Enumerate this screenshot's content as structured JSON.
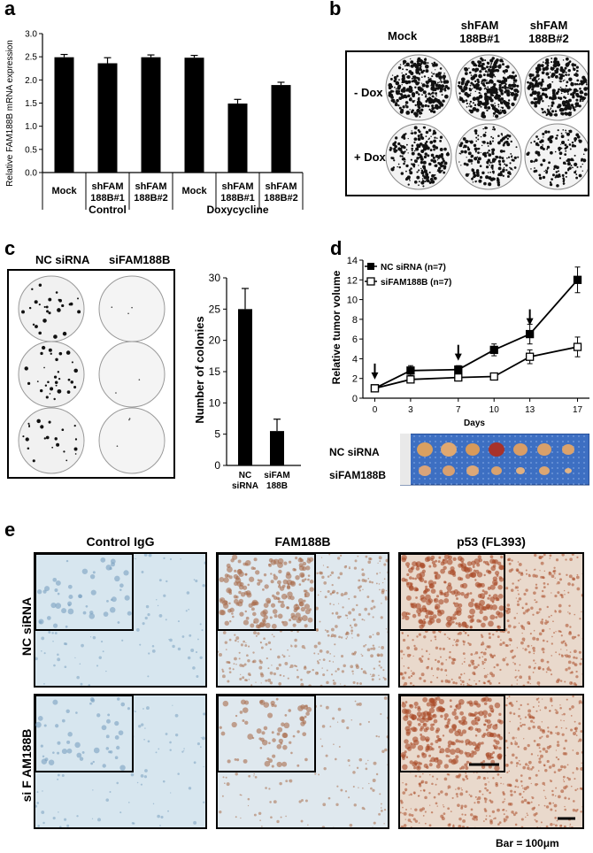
{
  "panels": {
    "a": {
      "label": "a",
      "ylabel": "Relative FAM188B mRNA expression",
      "yticks": [
        "0.0",
        "0.5",
        "1.0",
        "1.5",
        "2.0",
        "2.5",
        "3.0"
      ],
      "bars": [
        {
          "label1": "Mock",
          "label2": "",
          "value": 2.49,
          "err": 0.06
        },
        {
          "label1": "shFAM",
          "label2": "188B#1",
          "value": 2.36,
          "err": 0.12
        },
        {
          "label1": "shFAM",
          "label2": "188B#2",
          "value": 2.49,
          "err": 0.05
        },
        {
          "label1": "Mock",
          "label2": "",
          "value": 2.48,
          "err": 0.05
        },
        {
          "label1": "shFAM",
          "label2": "188B#1",
          "value": 1.49,
          "err": 0.09
        },
        {
          "label1": "shFAM",
          "label2": "188B#2",
          "value": 1.89,
          "err": 0.06
        }
      ],
      "groups": [
        "Control",
        "Doxycycline"
      ]
    },
    "b": {
      "label": "b",
      "cols": [
        {
          "line1": "Mock",
          "line2": ""
        },
        {
          "line1": "shFAM",
          "line2": "188B#1"
        },
        {
          "line1": "shFAM",
          "line2": "188B#2"
        }
      ],
      "rows": [
        "- Dox",
        "+ Dox"
      ]
    },
    "c": {
      "label": "c",
      "cols": [
        "NC siRNA",
        "siFAM188B"
      ],
      "ylabel": "Number of colonies",
      "yticks": [
        "0",
        "5",
        "10",
        "15",
        "20",
        "25",
        "30"
      ],
      "bars": [
        {
          "label1": "NC",
          "label2": "siRNA",
          "value": 25,
          "err": 3.3
        },
        {
          "label1": "siFAM",
          "label2": "188B",
          "value": 5.5,
          "err": 1.9
        }
      ]
    },
    "d": {
      "label": "d",
      "ylabel": "Relative tumor volume",
      "xlabel": "Days",
      "yticks": [
        "0",
        "2",
        "4",
        "6",
        "8",
        "10",
        "12",
        "14"
      ],
      "xticks": [
        "0",
        "3",
        "7",
        "10",
        "13",
        "17"
      ],
      "legend": [
        "NC siRNA (n=7)",
        "siFAM188B (n=7)"
      ],
      "photo_rows": [
        "NC siRNA",
        "siFAM188B"
      ]
    },
    "e": {
      "label": "e",
      "cols": [
        "Control IgG",
        "FAM188B",
        "p53 (FL393)"
      ],
      "rows": [
        "NC siRNA",
        "si F AM188B"
      ],
      "scale": "Bar = 100μm"
    }
  },
  "chart_data": [
    {
      "type": "bar",
      "ylabel": "Relative FAM188B mRNA expression",
      "categories": [
        "Mock",
        "shFAM 188B#1",
        "shFAM 188B#2",
        "Mock",
        "shFAM 188B#1",
        "shFAM 188B#2"
      ],
      "groups": [
        "Control",
        "Doxycycline"
      ],
      "values": [
        2.49,
        2.36,
        2.49,
        2.48,
        1.49,
        1.89
      ],
      "errors": [
        0.06,
        0.12,
        0.05,
        0.05,
        0.09,
        0.06
      ],
      "ylim": [
        0,
        3.0
      ]
    },
    {
      "type": "bar",
      "ylabel": "Number of colonies",
      "categories": [
        "NC siRNA",
        "siFAM 188B"
      ],
      "values": [
        25,
        5.5
      ],
      "errors": [
        3.3,
        1.9
      ],
      "ylim": [
        0,
        30
      ]
    },
    {
      "type": "line",
      "ylabel": "Relative tumor volume",
      "xlabel": "Days",
      "x": [
        0,
        3,
        7,
        10,
        13,
        17
      ],
      "series": [
        {
          "name": "NC siRNA (n=7)",
          "values": [
            1.0,
            2.8,
            2.9,
            4.9,
            6.5,
            12.0
          ],
          "errors": [
            0.1,
            0.5,
            0.4,
            0.6,
            1.0,
            1.3
          ]
        },
        {
          "name": "siFAM188B (n=7)",
          "values": [
            1.0,
            1.9,
            2.1,
            2.2,
            4.2,
            5.2
          ],
          "errors": [
            0.1,
            0.2,
            0.2,
            0.3,
            0.7,
            1.0
          ]
        }
      ],
      "ylim": [
        0,
        14
      ],
      "annotations": "arrows at days 0, 7, 13"
    }
  ]
}
